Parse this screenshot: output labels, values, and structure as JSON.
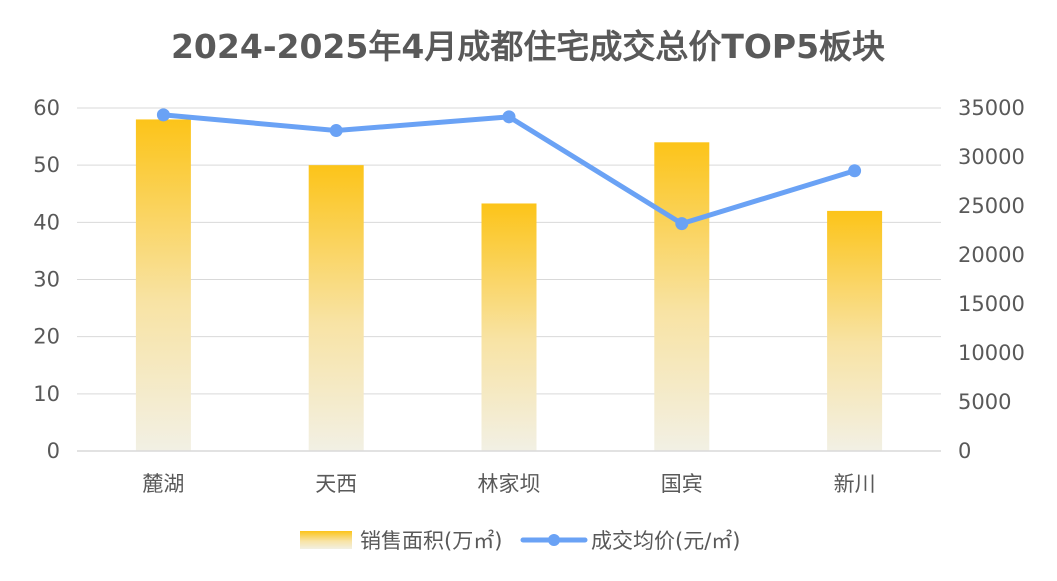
{
  "chart_data": {
    "type": "bar",
    "title": "2024-2025年4月成都住宅成交总价TOP5板块",
    "categories": [
      "麓湖",
      "天西",
      "林家坝",
      "国宾",
      "新川"
    ],
    "series": [
      {
        "name": "销售面积(万㎡)",
        "type": "bar",
        "axis": "left",
        "values": [
          58,
          50,
          43.3,
          54,
          42
        ],
        "color_top": "#FCC419",
        "color_bottom": "#F2F0E4"
      },
      {
        "name": "成交均价(元/㎡)",
        "type": "line",
        "axis": "right",
        "values": [
          34300,
          32700,
          34100,
          23200,
          28600
        ],
        "color": "#6AA2F5"
      }
    ],
    "y_left": {
      "min": 0,
      "max": 60,
      "ticks": [
        "0",
        "10",
        "20",
        "30",
        "40",
        "50",
        "60"
      ]
    },
    "y_right": {
      "min": 0,
      "max": 35000,
      "ticks": [
        "0",
        "5000",
        "10000",
        "15000",
        "20000",
        "25000",
        "30000",
        "35000"
      ]
    },
    "grid": true,
    "legend_position": "bottom"
  }
}
